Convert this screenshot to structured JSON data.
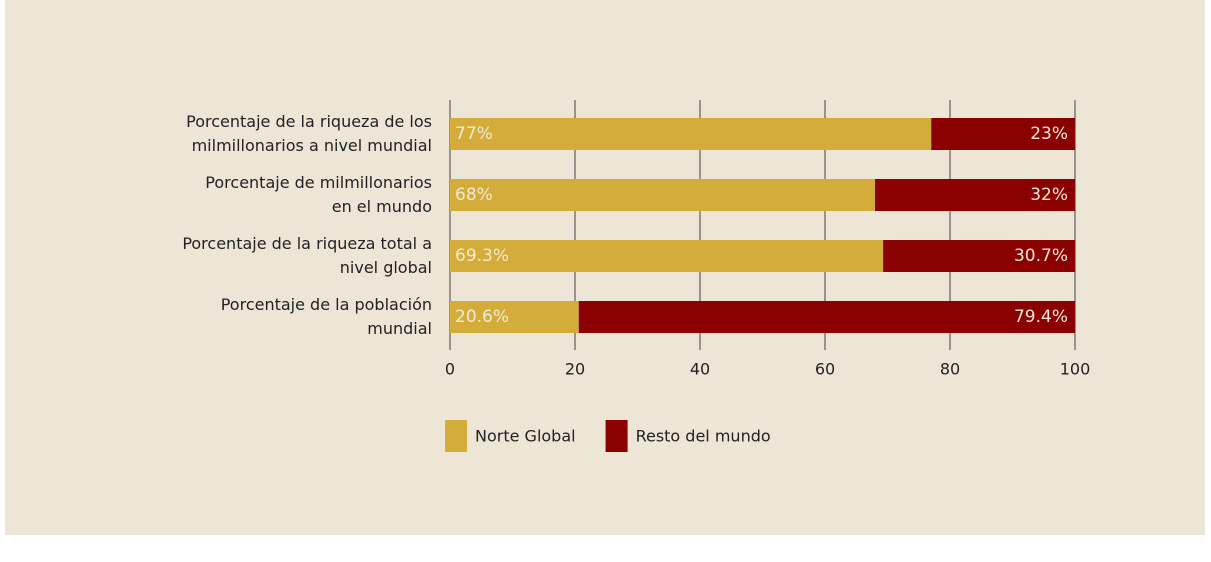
{
  "chart_data": {
    "type": "stacked_barh",
    "categories": [
      "Porcentaje de la riqueza de los\nmilmillonarios a nivel mundial",
      "Porcentaje de milmillonarios\nen el mundo",
      "Porcentaje de la riqueza total a\nnivel global",
      "Porcentaje de la población\nmundial"
    ],
    "series": [
      {
        "name": "Norte Global",
        "color": "#d4ac3a",
        "values": [
          77,
          68,
          69.3,
          20.6
        ],
        "value_labels": [
          "77%",
          "68%",
          "69.3%",
          "20.6%"
        ]
      },
      {
        "name": "Resto del mundo",
        "color": "#8b0000",
        "values": [
          23,
          32,
          30.7,
          79.4
        ],
        "value_labels": [
          "23%",
          "32%",
          "30.7%",
          "79.4%"
        ]
      }
    ],
    "xlim": [
      0,
      100
    ],
    "xticks": [
      0,
      20,
      40,
      60,
      80,
      100
    ],
    "grid": true,
    "legend": "bottom"
  }
}
